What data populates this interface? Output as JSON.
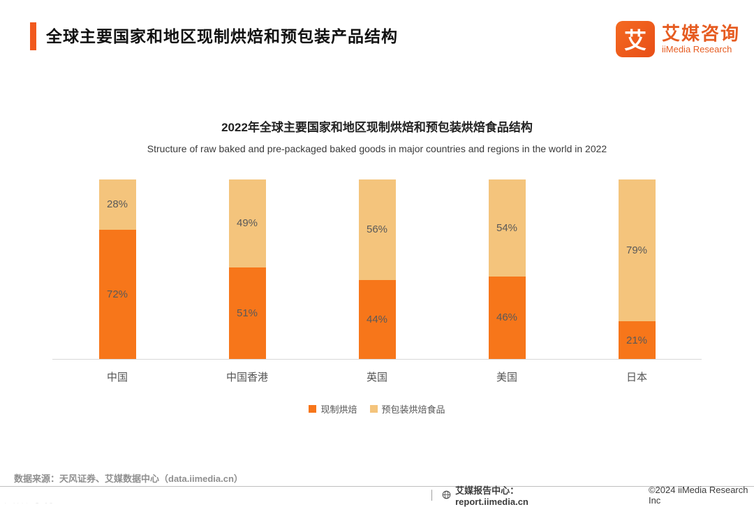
{
  "page": {
    "title": "全球主要国家和地区现制烘焙和预包装产品结构",
    "logo": {
      "icon_glyph": "艾",
      "brand_cn": "艾媒咨询",
      "brand_en": "iiMedia Research"
    },
    "accent_color": "#f1591d",
    "source_note": "数据来源：天风证券、艾媒数据中心（data.iimedia.cn）",
    "watermark": "大数跨境",
    "footer": {
      "divider": "│",
      "report_center": "艾媒报告中心：report.iimedia.cn",
      "copyright": "©2024 iiMedia Research  Inc"
    }
  },
  "chart_data": {
    "type": "bar",
    "stacked": true,
    "title": "2022年全球主要国家和地区现制烘焙和预包装烘焙食品结构",
    "subtitle": "Structure of raw baked and pre-packaged baked goods in major countries and regions in the world in 2022",
    "categories": [
      "中国",
      "中国香港",
      "英国",
      "美国",
      "日本"
    ],
    "series": [
      {
        "name": "现制烘焙",
        "color": "#f7761a",
        "values": [
          72,
          51,
          44,
          46,
          21
        ]
      },
      {
        "name": "预包装烘焙食品",
        "color": "#f4c47c",
        "values": [
          28,
          49,
          56,
          54,
          79
        ]
      }
    ],
    "value_suffix": "%",
    "ylim": [
      0,
      100
    ],
    "legend_position": "bottom",
    "grid": false
  }
}
